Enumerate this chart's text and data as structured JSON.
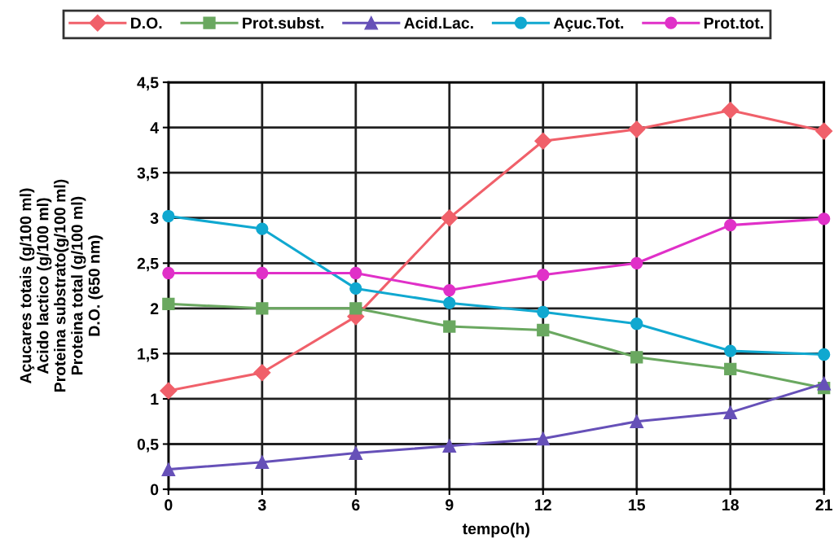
{
  "chart_data": {
    "type": "line",
    "xlabel": "tempo(h)",
    "ylabel": "Açucares totais (g/100 ml)\nAcido lactico (g/100 ml)\nProteina substrato(g/100 ml)\nProteina total (g/100 ml)\nD.O. (650 nm)",
    "x": [
      0,
      3,
      6,
      9,
      12,
      15,
      18,
      21
    ],
    "series": [
      {
        "name": "D.O.",
        "color": "#f0606a",
        "marker": "diamond",
        "values": [
          1.09,
          1.29,
          1.91,
          3.0,
          3.85,
          3.98,
          4.19,
          3.96
        ]
      },
      {
        "name": "Prot.subst.",
        "color": "#6aa860",
        "marker": "square",
        "values": [
          2.05,
          2.0,
          2.0,
          1.8,
          1.76,
          1.46,
          1.33,
          1.12
        ]
      },
      {
        "name": "Acid.Lac.",
        "color": "#6650b8",
        "marker": "triangle",
        "values": [
          0.22,
          0.3,
          0.4,
          0.48,
          0.56,
          0.75,
          0.85,
          1.17
        ]
      },
      {
        "name": "Açuc.Tot.",
        "color": "#10a8d0",
        "marker": "circle",
        "values": [
          3.02,
          2.88,
          2.22,
          2.06,
          1.96,
          1.83,
          1.53,
          1.49
        ]
      },
      {
        "name": "Prot.tot.",
        "color": "#e030c8",
        "marker": "circle",
        "values": [
          2.39,
          2.39,
          2.39,
          2.2,
          2.37,
          2.5,
          2.92,
          2.99
        ]
      }
    ],
    "xlim": [
      0,
      21
    ],
    "xticks": [
      0,
      3,
      6,
      9,
      12,
      15,
      18,
      21
    ],
    "ylim": [
      0,
      4.5
    ],
    "yticks": [
      0,
      {
        "value": 0.5,
        "label": "0,5"
      },
      1,
      {
        "value": 1.5,
        "label": "1,5"
      },
      2,
      {
        "value": 2.5,
        "label": "2,5"
      },
      3,
      {
        "value": 3.5,
        "label": "3,5"
      },
      4,
      {
        "value": 4.5,
        "label": "4,5"
      }
    ],
    "grid": true,
    "legend": "top",
    "line_style": "solid"
  }
}
